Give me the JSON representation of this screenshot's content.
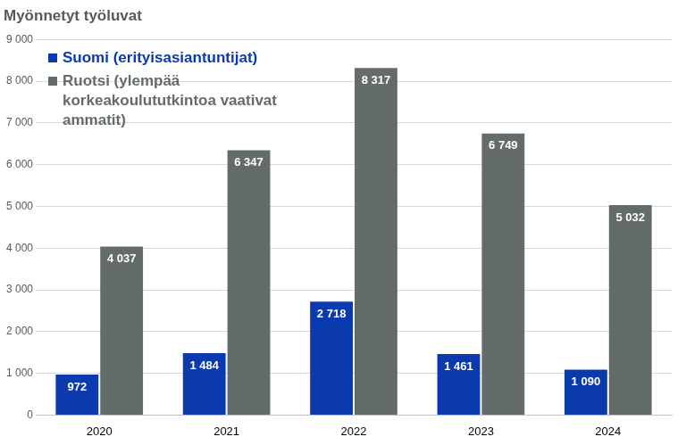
{
  "chart_data": {
    "type": "bar",
    "title": "Myönnetyt työluvat",
    "categories": [
      "2020",
      "2021",
      "2022",
      "2023",
      "2024"
    ],
    "series": [
      {
        "name": "Suomi (erityisasiantuntijat)",
        "color": "#0a3aad",
        "values": [
          972,
          1484,
          2718,
          1461,
          1090
        ],
        "value_labels": [
          "972",
          "1 484",
          "2 718",
          "1 461",
          "1 090"
        ]
      },
      {
        "name": "Ruotsi (ylempää korkeakoulututkintoa vaativat ammatit)",
        "color": "#646b6b",
        "values": [
          4037,
          6347,
          8317,
          6749,
          5032
        ],
        "value_labels": [
          "4 037",
          "6 347",
          "8 317",
          "6 749",
          "5 032"
        ]
      }
    ],
    "ylim": [
      0,
      9000
    ],
    "yticks": [
      0,
      {
        "value": 1000,
        "label": "1 000"
      },
      {
        "value": 2000,
        "label": "2 000"
      },
      {
        "value": 3000,
        "label": "3 000"
      },
      {
        "value": 4000,
        "label": "4 000"
      },
      {
        "value": 5000,
        "label": "5 000"
      },
      {
        "value": 6000,
        "label": "6 000"
      },
      {
        "value": 7000,
        "label": "7 000"
      },
      {
        "value": 8000,
        "label": "8 000"
      },
      {
        "value": 9000,
        "label": "9 000"
      }
    ],
    "grid": true,
    "legend": "top-left",
    "data_labels": true
  }
}
